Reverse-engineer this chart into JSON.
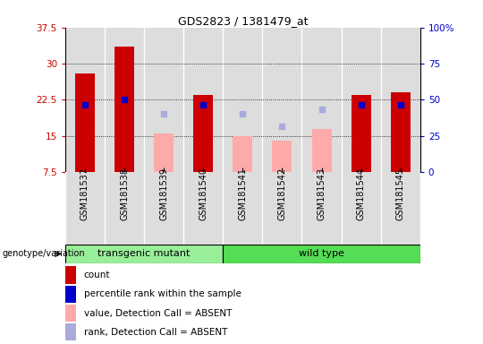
{
  "title": "GDS2823 / 1381479_at",
  "samples": [
    "GSM181537",
    "GSM181538",
    "GSM181539",
    "GSM181540",
    "GSM181541",
    "GSM181542",
    "GSM181543",
    "GSM181544",
    "GSM181545"
  ],
  "count_values": [
    28.0,
    33.5,
    null,
    23.5,
    null,
    null,
    null,
    23.5,
    24.0
  ],
  "percentile_rank": [
    21.5,
    22.5,
    null,
    21.5,
    null,
    null,
    null,
    21.5,
    21.5
  ],
  "absent_value": [
    null,
    null,
    15.5,
    null,
    15.0,
    14.0,
    16.5,
    null,
    null
  ],
  "absent_rank": [
    null,
    null,
    19.5,
    null,
    19.5,
    17.0,
    20.5,
    null,
    null
  ],
  "ylim_left": [
    7.5,
    37.5
  ],
  "ylim_right": [
    0,
    100
  ],
  "yticks_left": [
    7.5,
    15.0,
    22.5,
    30.0,
    37.5
  ],
  "yticks_right": [
    0,
    25,
    50,
    75,
    100
  ],
  "ytick_labels_left": [
    "7.5",
    "15",
    "22.5",
    "30",
    "37.5"
  ],
  "ytick_labels_right": [
    "0",
    "25",
    "50",
    "75",
    "100%"
  ],
  "group_labels": [
    "transgenic mutant",
    "wild type"
  ],
  "group_ranges": [
    [
      0,
      3
    ],
    [
      4,
      8
    ]
  ],
  "group_colors_light": "#99ee99",
  "group_colors_dark": "#55dd55",
  "bar_bottom": 7.5,
  "bar_color_count": "#cc0000",
  "bar_color_absent_value": "#ffaaaa",
  "dot_color_rank": "#0000cc",
  "dot_color_absent_rank": "#aaaadd",
  "bg_color": "#dddddd",
  "legend_items": [
    {
      "label": "count",
      "color": "#cc0000"
    },
    {
      "label": "percentile rank within the sample",
      "color": "#0000cc"
    },
    {
      "label": "value, Detection Call = ABSENT",
      "color": "#ffaaaa"
    },
    {
      "label": "rank, Detection Call = ABSENT",
      "color": "#aaaadd"
    }
  ]
}
